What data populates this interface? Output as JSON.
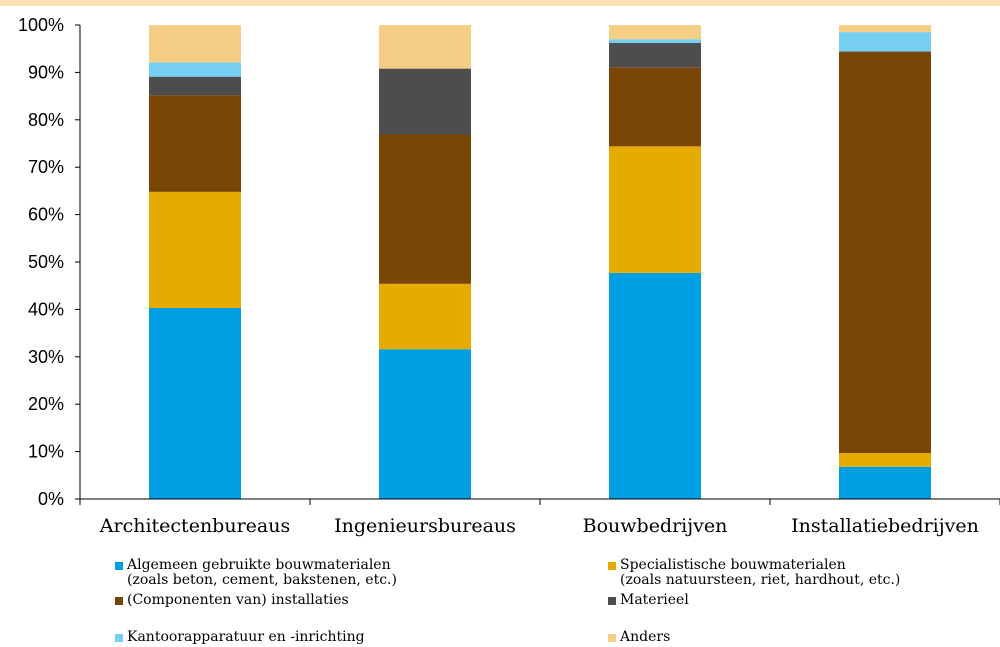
{
  "chart_data": {
    "type": "bar",
    "stacked": true,
    "categories": [
      "Architectenbureaus",
      "Ingenieursbureaus",
      "Bouwbedrijven",
      "Installatiebedrijven"
    ],
    "ylim": [
      0,
      100
    ],
    "yticks": [
      "0%",
      "10%",
      "20%",
      "30%",
      "40%",
      "50%",
      "60%",
      "70%",
      "80%",
      "90%",
      "100%"
    ],
    "series": [
      {
        "name": "Algemeen gebruikte bouwmaterialen\n(zoals beton, cement, bakstenen, etc.)",
        "color": "#009fe3",
        "values": [
          40.3,
          31.6,
          47.7,
          6.8
        ]
      },
      {
        "name": "Specialistische bouwmaterialen\n(zoals natuursteen, riet, hardhout, etc.)",
        "color": "#e6ab00",
        "values": [
          24.5,
          13.8,
          26.7,
          2.9
        ]
      },
      {
        "name": "(Componenten van) installaties",
        "color": "#7a4608",
        "values": [
          20.4,
          31.5,
          16.7,
          84.7
        ]
      },
      {
        "name": "Materieel",
        "color": "#4d4d4f",
        "values": [
          3.9,
          13.9,
          5.1,
          0.0
        ]
      },
      {
        "name": "Kantoorapparatuur en -inrichting",
        "color": "#76cff0",
        "values": [
          3.0,
          0.0,
          0.8,
          4.1
        ]
      },
      {
        "name": "Anders",
        "color": "#f5ce85",
        "values": [
          7.9,
          9.2,
          3.0,
          1.5
        ]
      }
    ],
    "legend_position": "bottom"
  }
}
